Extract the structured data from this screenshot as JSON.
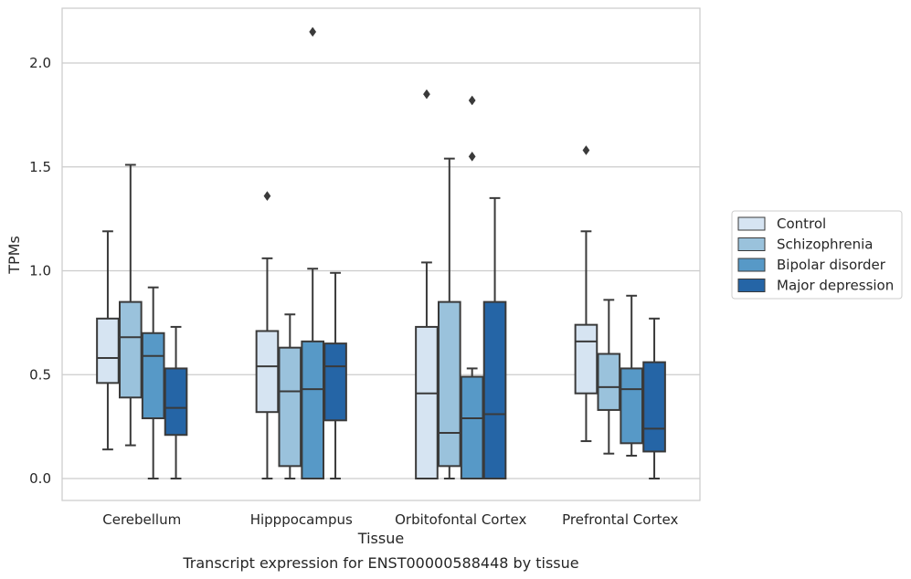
{
  "chart_data": {
    "type": "box",
    "caption": "Transcript expression for ENST00000588448 by tissue",
    "xlabel": "Tissue",
    "ylabel": "TPMs",
    "ylim": [
      -0.1,
      2.265
    ],
    "yticks": [
      "0.0",
      "0.5",
      "1.0",
      "1.5",
      "2.0"
    ],
    "grid": "horizontal",
    "legend_position": "right",
    "categories": [
      "Cerebellum",
      "Hipppocampus",
      "Orbitofontal Cortex",
      "Prefrontal Cortex"
    ],
    "series": [
      {
        "name": "Control",
        "color": "#d6e4f2",
        "boxes": [
          {
            "whislo": 0.14,
            "q1": 0.46,
            "med": 0.58,
            "q3": 0.77,
            "whishi": 1.19,
            "fliers": []
          },
          {
            "whislo": 0.0,
            "q1": 0.32,
            "med": 0.54,
            "q3": 0.71,
            "whishi": 1.06,
            "fliers": [
              1.36
            ]
          },
          {
            "whislo": 0.0,
            "q1": 0.0,
            "med": 0.41,
            "q3": 0.73,
            "whishi": 1.04,
            "fliers": [
              1.85
            ]
          },
          {
            "whislo": 0.18,
            "q1": 0.41,
            "med": 0.66,
            "q3": 0.74,
            "whishi": 1.19,
            "fliers": [
              1.58
            ]
          }
        ]
      },
      {
        "name": "Schizophrenia",
        "color": "#9ac2dc",
        "boxes": [
          {
            "whislo": 0.16,
            "q1": 0.39,
            "med": 0.68,
            "q3": 0.85,
            "whishi": 1.51,
            "fliers": []
          },
          {
            "whislo": 0.0,
            "q1": 0.06,
            "med": 0.42,
            "q3": 0.63,
            "whishi": 0.79,
            "fliers": []
          },
          {
            "whislo": 0.0,
            "q1": 0.06,
            "med": 0.22,
            "q3": 0.85,
            "whishi": 1.54,
            "fliers": []
          },
          {
            "whislo": 0.12,
            "q1": 0.33,
            "med": 0.44,
            "q3": 0.6,
            "whishi": 0.86,
            "fliers": []
          }
        ]
      },
      {
        "name": "Bipolar disorder",
        "color": "#5799c7",
        "boxes": [
          {
            "whislo": 0.0,
            "q1": 0.29,
            "med": 0.59,
            "q3": 0.7,
            "whishi": 0.92,
            "fliers": []
          },
          {
            "whislo": 0.0,
            "q1": 0.0,
            "med": 0.43,
            "q3": 0.66,
            "whishi": 1.01,
            "fliers": [
              2.15
            ]
          },
          {
            "whislo": 0.0,
            "q1": 0.0,
            "med": 0.29,
            "q3": 0.49,
            "whishi": 0.53,
            "fliers": [
              1.55,
              1.82
            ]
          },
          {
            "whislo": 0.11,
            "q1": 0.17,
            "med": 0.43,
            "q3": 0.53,
            "whishi": 0.88,
            "fliers": []
          }
        ]
      },
      {
        "name": "Major depression",
        "color": "#2565a6",
        "boxes": [
          {
            "whislo": 0.0,
            "q1": 0.21,
            "med": 0.34,
            "q3": 0.53,
            "whishi": 0.73,
            "fliers": []
          },
          {
            "whislo": 0.0,
            "q1": 0.28,
            "med": 0.54,
            "q3": 0.65,
            "whishi": 0.99,
            "fliers": []
          },
          {
            "whislo": 0.0,
            "q1": 0.0,
            "med": 0.31,
            "q3": 0.85,
            "whishi": 1.35,
            "fliers": []
          },
          {
            "whislo": 0.0,
            "q1": 0.13,
            "med": 0.24,
            "q3": 0.56,
            "whishi": 0.77,
            "fliers": []
          }
        ]
      }
    ]
  }
}
